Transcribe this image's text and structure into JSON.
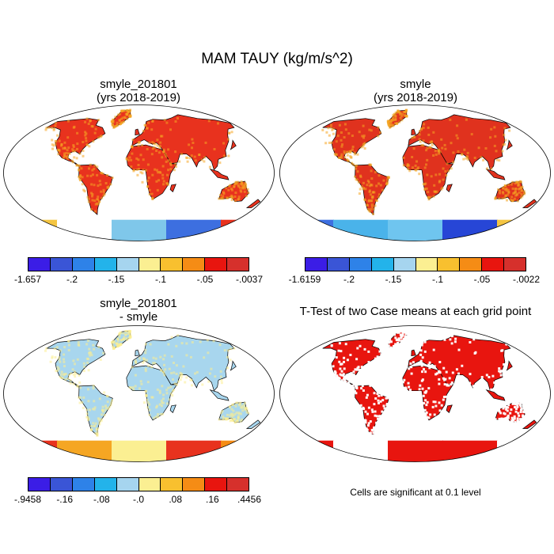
{
  "figure": {
    "title": "MAM TAUY (kg/m/s^2)",
    "note": "Cells are significant at 0.1 level"
  },
  "panels": [
    {
      "id": "p1",
      "title": [
        "smyle_201801",
        "(yrs 2018-2019)"
      ],
      "land_color": "#e8321e",
      "accent_color": "#f5a623",
      "antarctic": [
        "#f4c542",
        "#ffffff",
        "#7fc7ea",
        "#3d6fe0",
        "#e8321e"
      ],
      "colorbar": {
        "colors": [
          "#3b1de6",
          "#3a55d6",
          "#2e82e8",
          "#23b3ea",
          "#a6d5ef",
          "#fbef92",
          "#f8c02f",
          "#f58c15",
          "#e8150f",
          "#d6302c"
        ],
        "labels": [
          "-1.657",
          "-.2",
          "-.15",
          "-.1",
          "-.05",
          "-.0037"
        ]
      }
    },
    {
      "id": "p2",
      "title": [
        "smyle",
        "(yrs 2018-2019)"
      ],
      "land_color": "#e0321e",
      "accent_color": "#f5a623",
      "antarctic": [
        "#3d6fe0",
        "#4ab3ea",
        "#6fc5ef",
        "#2746d6",
        "#f4c542"
      ],
      "colorbar": {
        "colors": [
          "#3b1de6",
          "#3a55d6",
          "#2e82e8",
          "#23b3ea",
          "#a6d5ef",
          "#fbef92",
          "#f8c02f",
          "#f58c15",
          "#e8150f",
          "#d6302c"
        ],
        "labels": [
          "-1.6159",
          "-.2",
          "-.15",
          "-.1",
          "-.05",
          "-.0022"
        ]
      }
    },
    {
      "id": "p3",
      "title": [
        "smyle_201801",
        "- smyle"
      ],
      "land_color": "#a8d6ee",
      "accent_color": "#fbef92",
      "antarctic": [
        "#e8321e",
        "#f5a623",
        "#fbef92",
        "#e8321e",
        "#f58c15"
      ],
      "colorbar": {
        "colors": [
          "#3b1de6",
          "#3a55d6",
          "#2e82e8",
          "#23b3ea",
          "#a6d5ef",
          "#fbef92",
          "#f8c02f",
          "#f58c15",
          "#e8150f",
          "#d6302c"
        ],
        "labels": [
          "-.9458",
          "-.16",
          "-.08",
          "-.0",
          ".08",
          ".16",
          ".4456"
        ]
      }
    },
    {
      "id": "p4",
      "title": [
        "T-Test of two Case means at each grid point"
      ],
      "land_color": "#e8150f",
      "accent_color": "#ffffff",
      "antarctic": [
        "#e8150f",
        "#ffffff",
        "#e8150f",
        "#e8150f",
        "#ffffff"
      ]
    }
  ]
}
